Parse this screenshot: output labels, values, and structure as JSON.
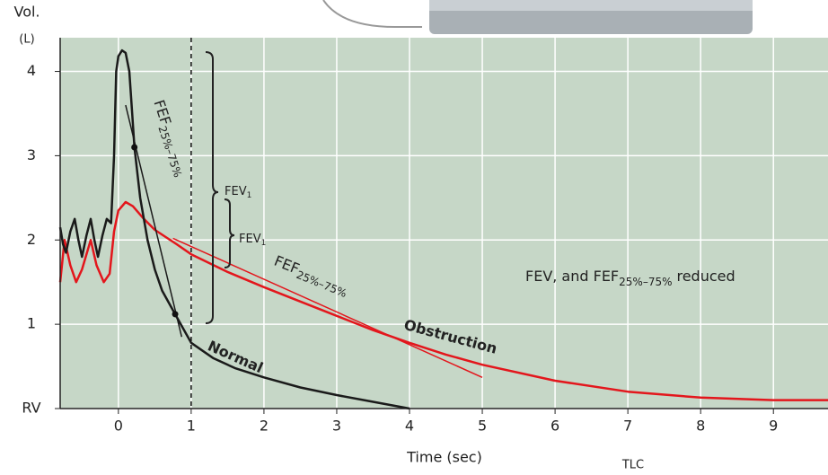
{
  "chart_data": {
    "type": "line",
    "y_label_top": "Vol.",
    "y_label_unit": "(L)",
    "x_label": "Time (sec)",
    "footer": "TLC",
    "xlim": [
      -0.8,
      9.75
    ],
    "ylim": [
      0,
      4.4
    ],
    "xticks": [
      0,
      1,
      2,
      3,
      4,
      5,
      6,
      7,
      8,
      9
    ],
    "yticks": [
      {
        "value": 0,
        "label": "RV"
      },
      1,
      2,
      3,
      4
    ],
    "grid": true,
    "vline": 1,
    "series": [
      {
        "name": "Normal",
        "color": "#1a1a1a",
        "x": [
          -0.8,
          -0.76,
          -0.72,
          -0.66,
          -0.6,
          -0.55,
          -0.5,
          -0.44,
          -0.38,
          -0.33,
          -0.28,
          -0.22,
          -0.16,
          -0.1,
          -0.06,
          -0.03,
          0.0,
          0.05,
          0.1,
          0.15,
          0.19,
          0.22,
          0.3,
          0.4,
          0.5,
          0.6,
          0.78,
          1.0,
          1.3,
          1.6,
          2.0,
          2.5,
          3.0,
          3.5,
          4.0
        ],
        "y": [
          2.15,
          1.95,
          1.85,
          2.1,
          2.25,
          2.0,
          1.8,
          2.05,
          2.25,
          2.0,
          1.8,
          2.05,
          2.25,
          2.2,
          3.0,
          4.0,
          4.18,
          4.25,
          4.22,
          4.0,
          3.5,
          3.1,
          2.5,
          2.0,
          1.65,
          1.4,
          1.12,
          0.78,
          0.6,
          0.48,
          0.37,
          0.25,
          0.16,
          0.08,
          0.0
        ]
      },
      {
        "name": "Obstruction",
        "color": "#e3161c",
        "x": [
          -0.8,
          -0.74,
          -0.66,
          -0.58,
          -0.5,
          -0.38,
          -0.3,
          -0.2,
          -0.12,
          -0.06,
          0.0,
          0.1,
          0.2,
          0.35,
          0.5,
          0.8,
          1.0,
          1.5,
          2.0,
          2.5,
          3.0,
          3.5,
          4.0,
          4.5,
          5.0,
          6.0,
          7.0,
          8.0,
          9.0,
          9.75
        ],
        "y": [
          1.5,
          2.0,
          1.7,
          1.5,
          1.65,
          2.0,
          1.7,
          1.5,
          1.6,
          2.1,
          2.35,
          2.45,
          2.4,
          2.25,
          2.12,
          1.95,
          1.83,
          1.62,
          1.44,
          1.27,
          1.1,
          0.93,
          0.78,
          0.64,
          0.52,
          0.33,
          0.2,
          0.13,
          0.1,
          0.1
        ]
      }
    ],
    "tangents": [
      {
        "color": "#1a1a1a",
        "x": [
          0.1,
          0.87
        ],
        "y": [
          3.6,
          0.85
        ],
        "label": {
          "text": "FEF",
          "sub": "25%–75%"
        }
      },
      {
        "color": "#e3161c",
        "x": [
          0.75,
          5.0
        ],
        "y": [
          2.02,
          0.37
        ],
        "label": {
          "text": "FEF",
          "sub": "25%–75%"
        }
      }
    ],
    "points": [
      {
        "x": 0.22,
        "y": 3.1
      },
      {
        "x": 0.78,
        "y": 1.12
      }
    ],
    "fev_labels": [
      {
        "text": "FEV",
        "sub": "1"
      },
      {
        "text": "FEV",
        "sub": "1"
      }
    ],
    "note": {
      "text": "FEV, and FEF",
      "sub": "25%–75%",
      "tail": "reduced"
    }
  }
}
